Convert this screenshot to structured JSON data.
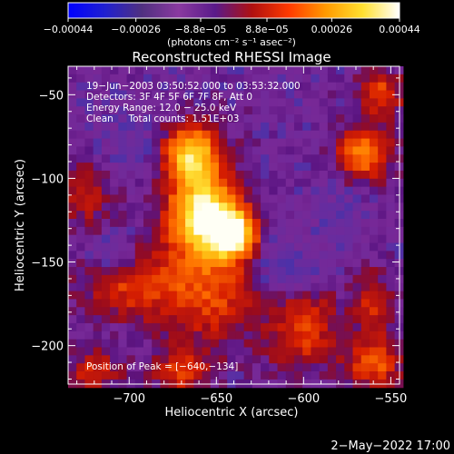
{
  "chart_data": {
    "type": "heatmap",
    "title": "Reconstructed RHESSI Image",
    "xlabel": "Heliocentric X (arcsec)",
    "ylabel": "Heliocentric Y (arcsec)",
    "xlim": [
      -735,
      -545
    ],
    "ylim": [
      -223,
      -33
    ],
    "x_ticks": [
      -700,
      -650,
      -600,
      -550
    ],
    "x_tick_labels": [
      "−700",
      "−650",
      "−600",
      "−550"
    ],
    "y_ticks": [
      -50,
      -100,
      -150,
      -200
    ],
    "y_tick_labels": [
      "−50",
      "−100",
      "−150",
      "−200"
    ],
    "colorbar": {
      "range": [
        -0.00044,
        0.00044
      ],
      "tick_values": [
        -0.00044,
        -0.00026,
        -8.8e-05,
        8.8e-05,
        0.00026,
        0.00044
      ],
      "tick_labels": [
        "−0.00044",
        "−0.00026",
        "−8.8e−05",
        "8.8e−05",
        "0.00026",
        "0.00044"
      ],
      "units_label": "(photons cm⁻² s⁻¹ asec⁻²)",
      "colors": [
        "#0000ff",
        "#2020d0",
        "#503080",
        "#8a3aa0",
        "#5a1a8a",
        "#b01010",
        "#ff3a00",
        "#ff9a00",
        "#ffe030",
        "#ffffff"
      ]
    },
    "annotations": [
      "19−Jun−2003 03:50:52.000 to 03:53:32.000",
      "Detectors: 3F 4F 5F 6F 7F 8F, Att 0",
      "Energy Range: 12.0 − 25.0 keV",
      "Clean     Total counts: 1.51E+03",
      "Position of Peak = [−640,−134]"
    ],
    "peak": [
      -640,
      -134
    ],
    "sources": [
      {
        "x": -640,
        "y": -134,
        "amp": 1.0,
        "sx": 9,
        "sy": 9
      },
      {
        "x": -655,
        "y": -125,
        "amp": 0.72,
        "sx": 14,
        "sy": 14
      },
      {
        "x": -665,
        "y": -85,
        "amp": 0.62,
        "sx": 10,
        "sy": 10
      },
      {
        "x": -660,
        "y": -105,
        "amp": 0.45,
        "sx": 12,
        "sy": 20
      },
      {
        "x": -655,
        "y": -165,
        "amp": 0.4,
        "sx": 22,
        "sy": 22
      },
      {
        "x": -700,
        "y": -165,
        "amp": 0.3,
        "sx": 18,
        "sy": 12
      },
      {
        "x": -600,
        "y": -175,
        "amp": 0.32,
        "sx": 12,
        "sy": 14
      },
      {
        "x": -565,
        "y": -85,
        "amp": 0.55,
        "sx": 10,
        "sy": 10
      },
      {
        "x": -555,
        "y": -50,
        "amp": 0.38,
        "sx": 8,
        "sy": 10
      },
      {
        "x": -560,
        "y": -210,
        "amp": 0.45,
        "sx": 10,
        "sy": 10
      },
      {
        "x": -560,
        "y": -175,
        "amp": 0.3,
        "sx": 8,
        "sy": 12
      },
      {
        "x": -670,
        "y": -215,
        "amp": 0.38,
        "sx": 10,
        "sy": 8
      },
      {
        "x": -720,
        "y": -215,
        "amp": 0.3,
        "sx": 10,
        "sy": 8
      },
      {
        "x": -725,
        "y": -110,
        "amp": 0.22,
        "sx": 10,
        "sy": 14
      },
      {
        "x": -600,
        "y": -200,
        "amp": 0.25,
        "sx": 14,
        "sy": 10
      }
    ],
    "negatives": [
      {
        "x": -605,
        "y": -160,
        "amp": 0.35,
        "sx": 12,
        "sy": 10
      },
      {
        "x": -625,
        "y": -140,
        "amp": 0.18,
        "sx": 14,
        "sy": 12
      },
      {
        "x": -700,
        "y": -80,
        "amp": 0.15,
        "sx": 10,
        "sy": 10
      },
      {
        "x": -710,
        "y": -145,
        "amp": 0.15,
        "sx": 8,
        "sy": 8
      },
      {
        "x": -580,
        "y": -125,
        "amp": 0.15,
        "sx": 10,
        "sy": 12
      }
    ]
  },
  "footer": {
    "timestamp": "2−May−2022 17:00"
  }
}
